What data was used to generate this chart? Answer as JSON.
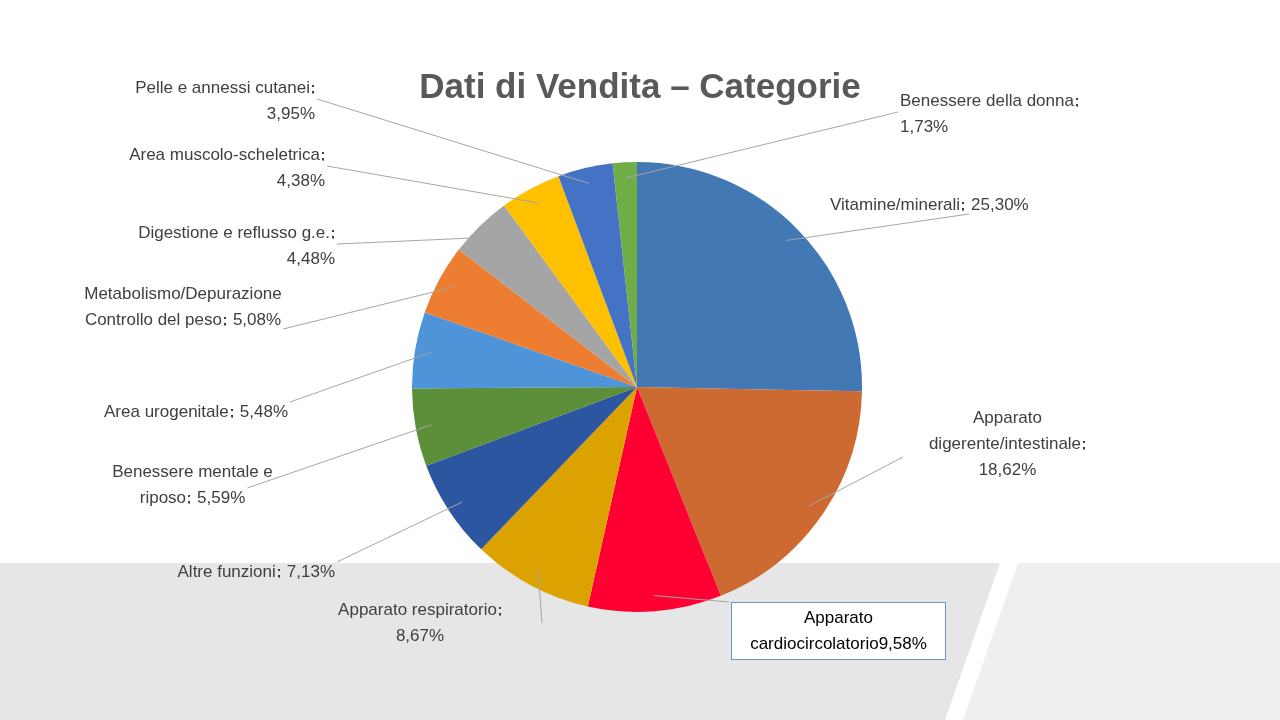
{
  "chart_data": {
    "type": "pie",
    "title": "Dati di Vendita – Categorie",
    "categories": [
      "Vitamine/minerali",
      "Apparato digerente/intestinale",
      "Apparato cardiocircolatorio",
      "Apparato respiratorio",
      "Altre funzioni",
      "Benessere mentale e riposo",
      "Area urogenitale",
      "Metabolismo/Depurazione Controllo del peso",
      "Digestione e reflusso g.e.",
      "Area muscolo-scheletrica",
      "Pelle e annessi cutanei",
      "Benessere della donna"
    ],
    "values": [
      25.3,
      18.62,
      9.58,
      8.67,
      7.13,
      5.59,
      5.48,
      5.08,
      4.48,
      4.38,
      3.95,
      1.73
    ],
    "colors": [
      "#4278b4",
      "#cc6a32",
      "#ff0033",
      "#dba200",
      "#2c57a0",
      "#5b8f3a",
      "#4f94d8",
      "#ed7d31",
      "#a5a5a5",
      "#ffc000",
      "#4472c4",
      "#70ad47"
    ],
    "value_labels": [
      "25,30%",
      "18,62%",
      "9,58%",
      "8,67%",
      "7,13%",
      "5,59%",
      "5,48%",
      "5,08%",
      "4,48%",
      "4,38%",
      "3,95%",
      "1,73%"
    ]
  }
}
